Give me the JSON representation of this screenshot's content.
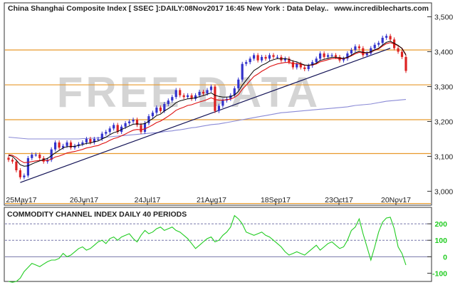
{
  "header": {
    "title": "China Shanghai Composite Index [ SSEC ]:DAILY:08Nov2017 16:45 New York : Data Delay..",
    "site": "www.incrediblecharts.com",
    "watermark": "FREE DATA"
  },
  "colors": {
    "background": "#ffffff",
    "panel_border": "#333333",
    "frame": "#cfd8d8",
    "orange_line": "#e89a2c",
    "up_candle": "#3333cc",
    "down_candle": "#dd2222",
    "ma_short": "#000000",
    "ma_mid": "#dd1111",
    "ma_long": "#8a8ad6",
    "trendline": "#111155",
    "cci": "#22cc22",
    "cci_ref": "#7777aa",
    "watermark": "#d4d4d4"
  },
  "chart_data": [
    {
      "type": "candlestick",
      "title": "China Shanghai Composite Index [ SSEC ]:DAILY:08Nov2017 16:45 New York : Data Delay..",
      "x_tick_labels": [
        "25May17",
        "26Jun17",
        "24Jul17",
        "21Aug17",
        "18Sep17",
        "23Oct17",
        "20Nov17"
      ],
      "y_tick_labels": [
        "3,500",
        "3,400",
        "3,300",
        "3,200",
        "3,100",
        "3,000"
      ],
      "y_ticks": [
        3500,
        3400,
        3300,
        3200,
        3100,
        3000
      ],
      "ylim": [
        2960,
        3540
      ],
      "horizontal_levels": [
        3405,
        3305,
        3205,
        3108,
        2965
      ],
      "closes": [
        3090,
        3085,
        3060,
        3040,
        3045,
        3095,
        3105,
        3105,
        3095,
        3085,
        3090,
        3120,
        3140,
        3125,
        3130,
        3140,
        3125,
        3130,
        3135,
        3140,
        3150,
        3140,
        3150,
        3150,
        3165,
        3170,
        3180,
        3190,
        3170,
        3185,
        3195,
        3200,
        3205,
        3190,
        3170,
        3195,
        3215,
        3225,
        3240,
        3230,
        3250,
        3260,
        3270,
        3290,
        3275,
        3270,
        3275,
        3265,
        3275,
        3285,
        3280,
        3290,
        3300,
        3230,
        3245,
        3260,
        3265,
        3275,
        3295,
        3320,
        3365,
        3370,
        3380,
        3390,
        3375,
        3385,
        3380,
        3390,
        3385,
        3385,
        3375,
        3380,
        3370,
        3355,
        3365,
        3355,
        3350,
        3360,
        3370,
        3380,
        3395,
        3385,
        3390,
        3390,
        3385,
        3375,
        3380,
        3395,
        3405,
        3415,
        3410,
        3390,
        3395,
        3410,
        3420,
        3425,
        3440,
        3445,
        3435,
        3410,
        3400,
        3385,
        3345
      ],
      "ma_short": [
        3103,
        3100,
        3089,
        3076,
        3072,
        3073,
        3078,
        3083,
        3087,
        3091,
        3094,
        3102,
        3110,
        3117,
        3124,
        3128,
        3128,
        3129,
        3131,
        3134,
        3137,
        3138,
        3142,
        3144,
        3150,
        3155,
        3162,
        3168,
        3171,
        3177,
        3182,
        3187,
        3192,
        3193,
        3192,
        3194,
        3201,
        3208,
        3217,
        3221,
        3230,
        3237,
        3244,
        3254,
        3259,
        3262,
        3265,
        3266,
        3268,
        3271,
        3274,
        3278,
        3282,
        3275,
        3272,
        3270,
        3270,
        3271,
        3276,
        3286,
        3304,
        3318,
        3332,
        3346,
        3353,
        3361,
        3366,
        3373,
        3377,
        3380,
        3379,
        3380,
        3378,
        3373,
        3371,
        3366,
        3362,
        3361,
        3363,
        3367,
        3375,
        3378,
        3381,
        3384,
        3384,
        3382,
        3381,
        3384,
        3390,
        3397,
        3401,
        3398,
        3397,
        3400,
        3405,
        3410,
        3419,
        3427,
        3430,
        3424,
        3418,
        3409,
        3390
      ],
      "ma_mid": [
        3105,
        3103,
        3097,
        3088,
        3082,
        3083,
        3085,
        3087,
        3088,
        3088,
        3088,
        3092,
        3098,
        3101,
        3105,
        3110,
        3112,
        3114,
        3117,
        3120,
        3124,
        3126,
        3129,
        3131,
        3136,
        3140,
        3146,
        3151,
        3154,
        3159,
        3164,
        3170,
        3175,
        3177,
        3176,
        3179,
        3184,
        3190,
        3197,
        3201,
        3208,
        3215,
        3223,
        3232,
        3237,
        3241,
        3246,
        3248,
        3252,
        3256,
        3259,
        3263,
        3268,
        3263,
        3261,
        3261,
        3262,
        3264,
        3269,
        3277,
        3292,
        3304,
        3317,
        3329,
        3336,
        3344,
        3350,
        3357,
        3361,
        3365,
        3367,
        3369,
        3369,
        3366,
        3366,
        3364,
        3361,
        3361,
        3362,
        3365,
        3371,
        3374,
        3377,
        3380,
        3381,
        3380,
        3380,
        3383,
        3388,
        3394,
        3398,
        3396,
        3396,
        3399,
        3404,
        3408,
        3416,
        3423,
        3426,
        3422,
        3417,
        3410,
        3392
      ],
      "ma_long": [
        3155,
        3154,
        3153,
        3152,
        3151,
        3150,
        3150,
        3150,
        3150,
        3150,
        3150,
        3150,
        3150,
        3150,
        3150,
        3150,
        3150,
        3150,
        3150,
        3151,
        3151,
        3152,
        3152,
        3153,
        3154,
        3155,
        3156,
        3157,
        3158,
        3159,
        3160,
        3161,
        3162,
        3163,
        3164,
        3165,
        3166,
        3167,
        3168,
        3169,
        3171,
        3172,
        3173,
        3175,
        3176,
        3178,
        3180,
        3182,
        3183,
        3185,
        3187,
        3189,
        3191,
        3192,
        3193,
        3195,
        3197,
        3199,
        3201,
        3203,
        3205,
        3207,
        3209,
        3211,
        3213,
        3215,
        3217,
        3219,
        3221,
        3223,
        3225,
        3226,
        3227,
        3228,
        3229,
        3230,
        3231,
        3232,
        3233,
        3234,
        3235,
        3236,
        3237,
        3238,
        3239,
        3240,
        3241,
        3242,
        3244,
        3246,
        3247,
        3248,
        3249,
        3250,
        3252,
        3254,
        3256,
        3258,
        3259,
        3260,
        3261,
        3262,
        3263
      ],
      "trendline": {
        "from": {
          "bar": 3,
          "value": 3025
        },
        "to": {
          "bar": 98,
          "value": 3410
        }
      }
    },
    {
      "type": "line",
      "title": "COMMODITY CHANNEL INDEX DAILY 40 PERIODS",
      "y_tick_labels": [
        "200",
        "100",
        "0",
        "-100"
      ],
      "y_ticks": [
        200,
        100,
        0,
        -100
      ],
      "reference_levels": [
        200,
        100,
        0
      ],
      "ylim": [
        -150,
        300
      ],
      "values": [
        -150,
        -155,
        -150,
        -130,
        -90,
        -65,
        -40,
        -50,
        -60,
        -45,
        -30,
        -20,
        -20,
        -10,
        20,
        0,
        10,
        30,
        50,
        60,
        40,
        50,
        70,
        90,
        100,
        80,
        110,
        120,
        100,
        120,
        130,
        140,
        110,
        90,
        130,
        160,
        140,
        150,
        170,
        180,
        160,
        170,
        180,
        160,
        150,
        130,
        110,
        80,
        50,
        70,
        90,
        110,
        120,
        90,
        100,
        130,
        150,
        180,
        250,
        230,
        200,
        150,
        140,
        130,
        140,
        150,
        130,
        120,
        100,
        80,
        60,
        30,
        10,
        20,
        30,
        20,
        10,
        30,
        50,
        70,
        40,
        60,
        80,
        90,
        70,
        50,
        60,
        100,
        160,
        180,
        230,
        140,
        60,
        -20,
        60,
        150,
        210,
        235,
        240,
        170,
        60,
        20,
        -50
      ]
    }
  ]
}
